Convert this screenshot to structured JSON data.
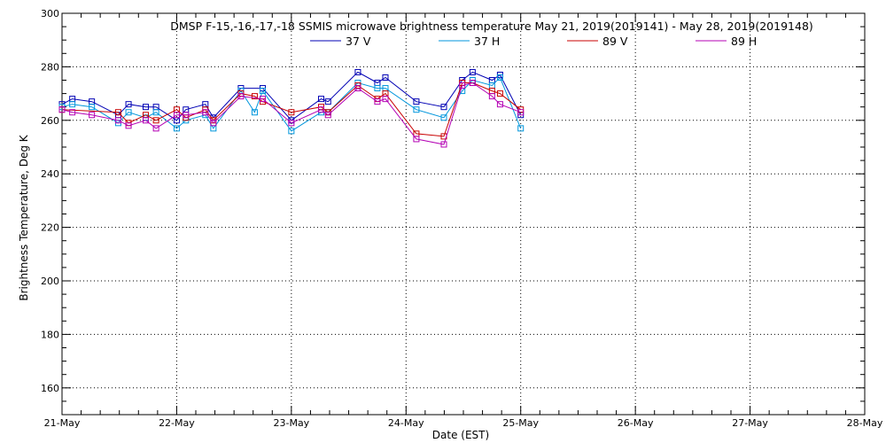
{
  "chart_data": {
    "type": "line",
    "title": "DMSP F-15,-16,-17,-18 SSMIS microwave brightness temperature May 21, 2019(2019141) - May 28, 2019(2019148)",
    "xlabel": "Date (EST)",
    "ylabel": "Brightness Temperature, Deg K",
    "xlim": [
      0,
      7
    ],
    "ylim": [
      150,
      300
    ],
    "x_tick_values": [
      0,
      1,
      2,
      3,
      4,
      5,
      6,
      7
    ],
    "x_tick_labels": [
      "21-May",
      "22-May",
      "23-May",
      "24-May",
      "25-May",
      "26-May",
      "27-May",
      "28-May"
    ],
    "y_tick_values": [
      160,
      180,
      200,
      220,
      240,
      260,
      280,
      300
    ],
    "y_tick_labels": [
      "160",
      "180",
      "200",
      "220",
      "240",
      "260",
      "280",
      "300"
    ],
    "grid": true,
    "legend_position": "top",
    "series": [
      {
        "name": "37 V",
        "color": "#0000b4",
        "x": [
          0.0,
          0.09,
          0.26,
          0.49,
          0.58,
          0.73,
          0.82,
          1.0,
          1.08,
          1.25,
          1.32,
          1.56,
          1.75,
          2.0,
          2.26,
          2.32,
          2.58,
          2.75,
          2.82,
          3.09,
          3.33,
          3.49,
          3.58,
          3.75,
          3.82,
          4.0
        ],
        "y": [
          266,
          268,
          267,
          262,
          266,
          265,
          265,
          260,
          264,
          266,
          261,
          272,
          272,
          260,
          268,
          267,
          278,
          274,
          276,
          267,
          265,
          275,
          278,
          275,
          277,
          262
        ]
      },
      {
        "name": "37 H",
        "color": "#0096dc",
        "x": [
          0.0,
          0.09,
          0.26,
          0.49,
          0.58,
          0.73,
          0.82,
          1.0,
          1.08,
          1.25,
          1.32,
          1.56,
          1.68,
          1.75,
          2.0,
          2.26,
          2.32,
          2.58,
          2.75,
          2.82,
          3.09,
          3.33,
          3.49,
          3.58,
          3.75,
          3.82,
          4.0
        ],
        "y": [
          265,
          266,
          265,
          259,
          263,
          261,
          263,
          257,
          260,
          262,
          257,
          271,
          263,
          271,
          256,
          263,
          263,
          274,
          272,
          272,
          264,
          261,
          271,
          275,
          273,
          276,
          257
        ]
      },
      {
        "name": "89 V",
        "color": "#c80000",
        "x": [
          0.0,
          0.49,
          0.58,
          0.73,
          0.82,
          1.0,
          1.08,
          1.25,
          1.32,
          1.56,
          1.68,
          1.75,
          2.0,
          2.26,
          2.32,
          2.58,
          2.75,
          2.82,
          3.09,
          3.33,
          3.49,
          3.58,
          3.75,
          3.82,
          4.0
        ],
        "y": [
          264,
          263,
          259,
          262,
          260,
          264,
          261,
          264,
          260,
          270,
          269,
          267,
          263,
          265,
          263,
          273,
          268,
          270,
          255,
          254,
          274,
          274,
          271,
          270,
          264
        ]
      },
      {
        "name": "89 H",
        "color": "#b400b4",
        "x": [
          0.0,
          0.09,
          0.26,
          0.49,
          0.58,
          0.73,
          0.82,
          1.0,
          1.08,
          1.25,
          1.32,
          1.56,
          1.75,
          2.0,
          2.26,
          2.32,
          2.58,
          2.75,
          2.82,
          3.09,
          3.33,
          3.49,
          3.58,
          3.75,
          3.82,
          4.0
        ],
        "y": [
          264,
          263,
          262,
          260,
          258,
          260,
          257,
          262,
          262,
          263,
          259,
          269,
          268,
          259,
          264,
          262,
          272,
          267,
          268,
          253,
          251,
          273,
          274,
          269,
          266,
          263
        ]
      }
    ]
  }
}
